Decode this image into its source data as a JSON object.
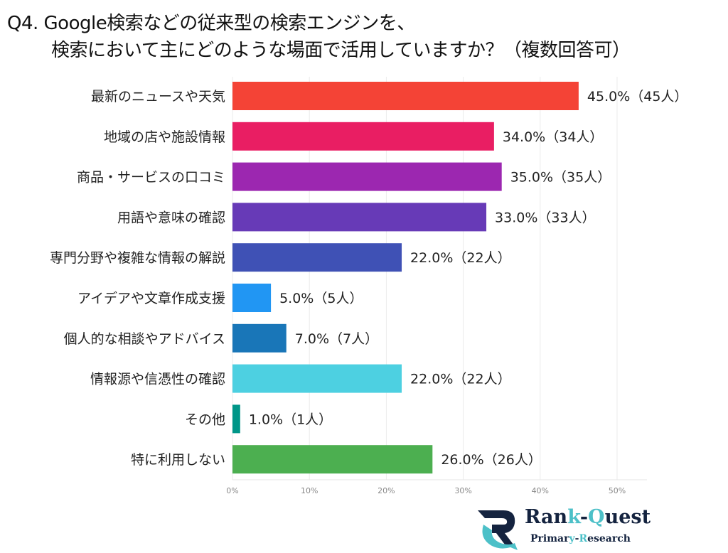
{
  "title_line1": "Q4. Google検索などの従来型の検索エンジンを、",
  "title_line2": "検索において主にどのような場面で活用していますか？（複数回答可）",
  "chart_data": {
    "type": "bar",
    "orientation": "horizontal",
    "categories": [
      "最新のニュースや天気",
      "地域の店や施設情報",
      "商品・サービスの口コミ",
      "用語や意味の確認",
      "専門分野や複雑な情報の解説",
      "アイデアや文章作成支援",
      "個人的な相談やアドバイス",
      "情報源や信憑性の確認",
      "その他",
      "特に利用しない"
    ],
    "values": [
      45.0,
      34.0,
      35.0,
      33.0,
      22.0,
      5.0,
      7.0,
      22.0,
      1.0,
      26.0
    ],
    "counts": [
      45,
      34,
      35,
      33,
      22,
      5,
      7,
      22,
      1,
      26
    ],
    "data_labels": [
      "45.0%（45人）",
      "34.0%（34人）",
      "35.0%（35人）",
      "33.0%（33人）",
      "22.0%（22人）",
      "5.0%（5人）",
      "7.0%（7人）",
      "22.0%（22人）",
      "1.0%（1人）",
      "26.0%（26人）"
    ],
    "colors": [
      "#f44336",
      "#e91e63",
      "#9c27b0",
      "#673ab7",
      "#3f51b5",
      "#2196f3",
      "#1976b8",
      "#4dd0e1",
      "#009688",
      "#4caf50"
    ],
    "xlim": [
      0,
      54
    ],
    "ticks": [
      "0%",
      "10%",
      "20%",
      "30%",
      "40%",
      "50%"
    ],
    "tick_values": [
      0,
      10,
      20,
      30,
      40,
      50
    ],
    "grid": true
  },
  "logo": {
    "name_a": "Ran",
    "name_b": "k",
    "name_c": "-",
    "name_d": "Q",
    "name_e": "uest",
    "sub_a": "Primar",
    "sub_b": "y",
    "sub_c": "-",
    "sub_d": "R",
    "sub_e": "esearch"
  }
}
